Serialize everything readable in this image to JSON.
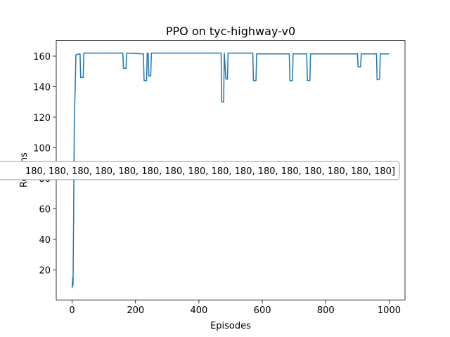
{
  "chart_data": {
    "type": "line",
    "title": "PPO on tyc-highway-v0",
    "x_label": "Episodes",
    "y_label": "Returns",
    "annotation": "180, 180, 180, 180, 180, 180, 180, 180, 180, 180, 180, 180, 180, 180, 180, 180]",
    "x": [
      0,
      2,
      3,
      5,
      7,
      10,
      12,
      25,
      27,
      35,
      37,
      160,
      162,
      170,
      172,
      225,
      227,
      235,
      237,
      240,
      242,
      248,
      250,
      470,
      472,
      478,
      480,
      485,
      490,
      492,
      570,
      572,
      580,
      582,
      685,
      687,
      695,
      697,
      740,
      742,
      750,
      752,
      900,
      902,
      910,
      912,
      960,
      962,
      970,
      972,
      1000
    ],
    "series": [
      {
        "name": "Returns",
        "color": "#1f77b4",
        "values": [
          8,
          15,
          10,
          60,
          120,
          140,
          161,
          161.5,
          146,
          146,
          162,
          162,
          152,
          152,
          162,
          161.5,
          144,
          144,
          162,
          162,
          147,
          147,
          162,
          162,
          130,
          130,
          162,
          145,
          145,
          162,
          162,
          144,
          144,
          161.5,
          161.5,
          144,
          144,
          161.5,
          161.5,
          144,
          144,
          161.5,
          161.5,
          153,
          153,
          161.5,
          161.5,
          144.5,
          145,
          161.5,
          161.5
        ]
      }
    ],
    "xlim": [
      -50,
      1050
    ],
    "ylim": [
      0.3,
      170.3
    ],
    "xticks": [
      0,
      200,
      400,
      600,
      800,
      1000
    ],
    "yticks": [
      20,
      40,
      60,
      80,
      100,
      120,
      140,
      160
    ]
  }
}
